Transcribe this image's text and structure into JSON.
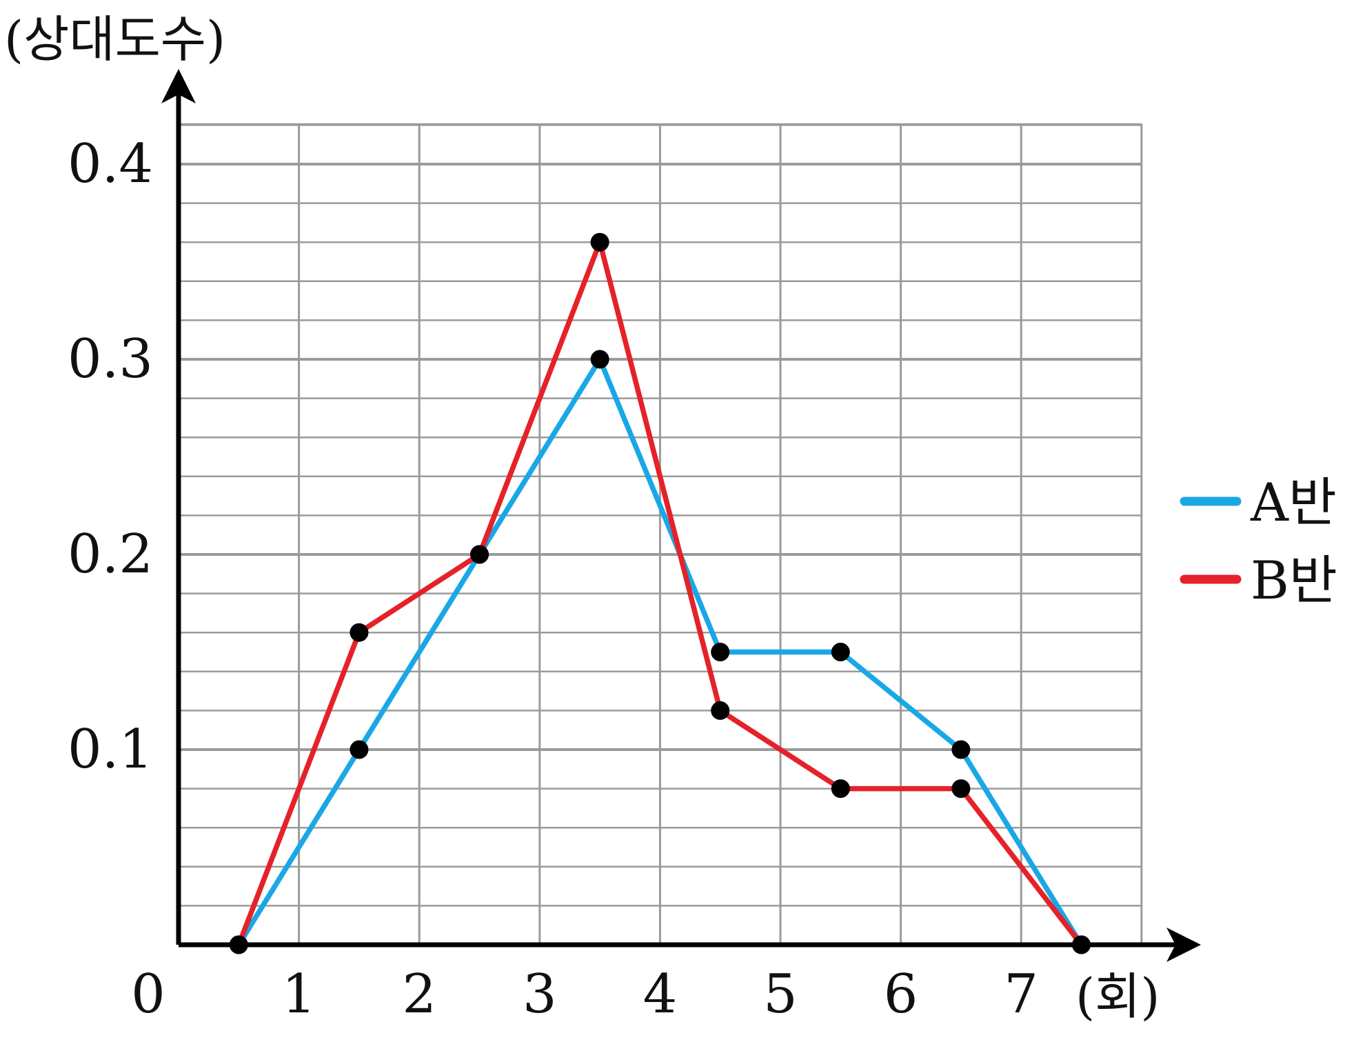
{
  "chart_data": {
    "type": "line",
    "ylabel": "(상대도수)",
    "xlabel": "(회)",
    "origin_label": "0",
    "x_ticks": [
      "1",
      "2",
      "3",
      "4",
      "5",
      "6",
      "7"
    ],
    "y_ticks": [
      "0.1",
      "0.2",
      "0.3",
      "0.4"
    ],
    "xlim": [
      0,
      8
    ],
    "ylim": [
      0,
      0.42
    ],
    "grid": true,
    "legend_position": "right",
    "series": [
      {
        "name": "A반",
        "color": "#1aa7e6",
        "x": [
          0.5,
          1.5,
          2.5,
          3.5,
          4.5,
          5.5,
          6.5,
          7.5
        ],
        "y": [
          0,
          0.1,
          0.2,
          0.3,
          0.15,
          0.15,
          0.1,
          0
        ]
      },
      {
        "name": "B반",
        "color": "#e52229",
        "x": [
          0.5,
          1.5,
          2.5,
          3.5,
          4.5,
          5.5,
          6.5,
          7.5
        ],
        "y": [
          0,
          0.16,
          0.2,
          0.36,
          0.12,
          0.08,
          0.08,
          0
        ]
      }
    ]
  }
}
